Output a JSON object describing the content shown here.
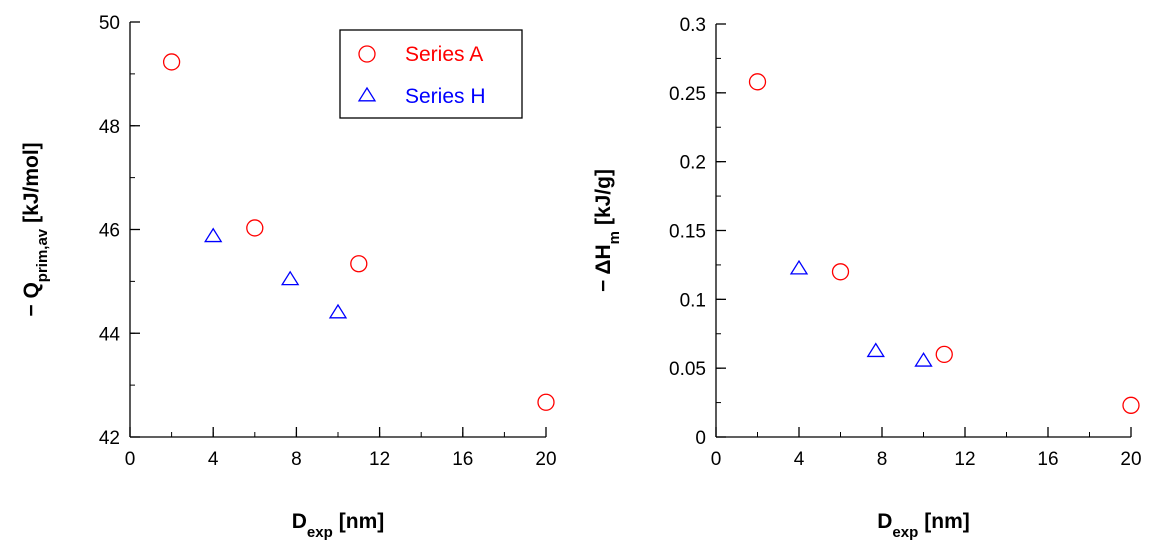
{
  "chart_data": [
    {
      "type": "scatter",
      "x_label": {
        "text": "D",
        "subscript": "exp",
        "unit": "[nm]"
      },
      "y_label": {
        "text": "− Q",
        "subscript": "prim,av",
        "unit": "[kJ/mol]"
      },
      "xlim": [
        0,
        20
      ],
      "ylim": [
        42,
        50
      ],
      "xticks": [
        0,
        4,
        8,
        12,
        16,
        20
      ],
      "yticks": [
        42,
        44,
        46,
        48,
        50
      ],
      "xminor": 2,
      "yminor": 1,
      "legend": "upper right",
      "series": [
        {
          "name": "Series A",
          "color": "#ff0000",
          "marker": "circle",
          "x": [
            2,
            6,
            11,
            20
          ],
          "values": [
            49.23,
            46.03,
            45.34,
            42.67
          ]
        },
        {
          "name": "Series H",
          "color": "#0000ff",
          "marker": "triangle",
          "x": [
            4,
            7.7,
            10
          ],
          "values": [
            45.86,
            45.03,
            44.39
          ]
        }
      ]
    },
    {
      "type": "scatter",
      "x_label": {
        "text": "D",
        "subscript": "exp",
        "unit": "[nm]"
      },
      "y_label": {
        "text": "− ΔH",
        "subscript": "m",
        "unit": "[kJ/g]"
      },
      "xlim": [
        0,
        20
      ],
      "ylim": [
        0,
        0.3
      ],
      "xticks": [
        0,
        4,
        8,
        12,
        16,
        20
      ],
      "yticks": [
        0,
        0.05,
        0.1,
        0.15,
        0.2,
        0.25,
        0.3
      ],
      "xminor": 2,
      "yminor": 0.025,
      "series": [
        {
          "color": "#ff0000",
          "marker": "circle",
          "x": [
            2,
            6,
            11,
            20
          ],
          "values": [
            0.258,
            0.12,
            0.06,
            0.023
          ]
        },
        {
          "color": "#0000ff",
          "marker": "triangle",
          "x": [
            4,
            7.7,
            10
          ],
          "values": [
            0.122,
            0.062,
            0.055
          ]
        }
      ]
    }
  ]
}
